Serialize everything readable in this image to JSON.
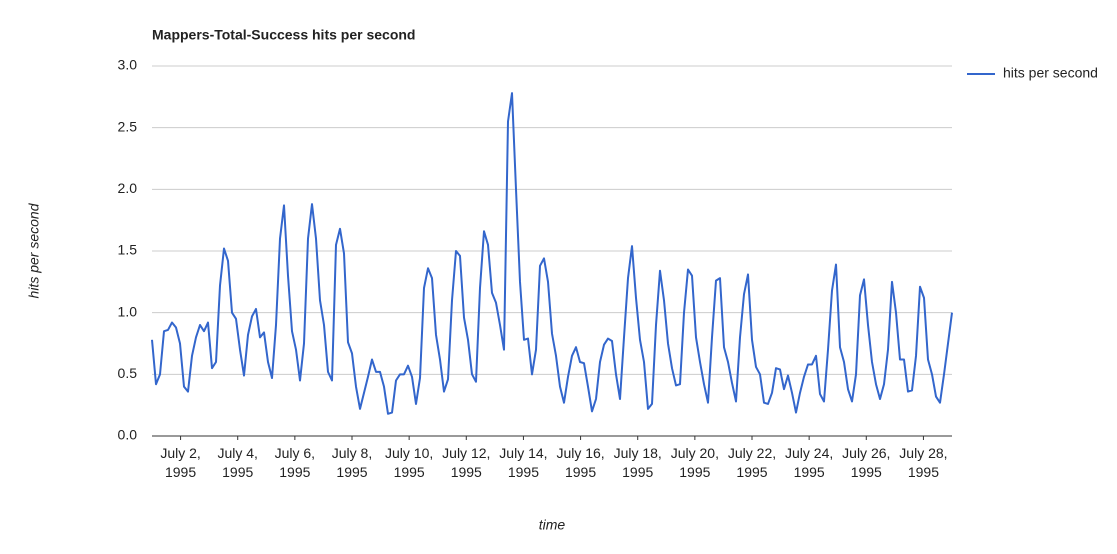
{
  "chart_data": {
    "type": "line",
    "title": "Mappers-Total-Success hits per second",
    "x_label": "time",
    "y_label": "hits per second",
    "xlim": [
      "1995-07-01",
      "1995-07-29"
    ],
    "xticks": [
      {
        "value": "1995-07-02",
        "label": "July 2, 1995"
      },
      {
        "value": "1995-07-04",
        "label": "July 4, 1995"
      },
      {
        "value": "1995-07-06",
        "label": "July 6, 1995"
      },
      {
        "value": "1995-07-08",
        "label": "July 8, 1995"
      },
      {
        "value": "1995-07-10",
        "label": "July 10, 1995"
      },
      {
        "value": "1995-07-12",
        "label": "July 12, 1995"
      },
      {
        "value": "1995-07-14",
        "label": "July 14, 1995"
      },
      {
        "value": "1995-07-16",
        "label": "July 16, 1995"
      },
      {
        "value": "1995-07-18",
        "label": "July 18, 1995"
      },
      {
        "value": "1995-07-20",
        "label": "July 20, 1995"
      },
      {
        "value": "1995-07-22",
        "label": "July 22, 1995"
      },
      {
        "value": "1995-07-24",
        "label": "July 24, 1995"
      },
      {
        "value": "1995-07-26",
        "label": "July 26, 1995"
      },
      {
        "value": "1995-07-28",
        "label": "July 28, 1995"
      }
    ],
    "ylim": [
      0,
      3
    ],
    "yticks": [
      {
        "value": 0,
        "label": "0.0"
      },
      {
        "value": 0.5,
        "label": "0.5"
      },
      {
        "value": 1,
        "label": "1.0"
      },
      {
        "value": 1.5,
        "label": "1.5"
      },
      {
        "value": 2,
        "label": "2.0"
      },
      {
        "value": 2.5,
        "label": "2.5"
      },
      {
        "value": 3,
        "label": "3.0"
      }
    ],
    "grid": true,
    "legend": "right",
    "series": [
      {
        "name": "hits per second",
        "color": "#3366cc",
        "values": [
          0.78,
          0.42,
          0.5,
          0.85,
          0.86,
          0.92,
          0.88,
          0.75,
          0.4,
          0.36,
          0.65,
          0.8,
          0.9,
          0.85,
          0.92,
          0.55,
          0.6,
          1.22,
          1.52,
          1.42,
          1.0,
          0.95,
          0.7,
          0.49,
          0.82,
          0.97,
          1.03,
          0.8,
          0.84,
          0.6,
          0.47,
          0.9,
          1.6,
          1.87,
          1.3,
          0.85,
          0.7,
          0.45,
          0.75,
          1.6,
          1.88,
          1.6,
          1.1,
          0.9,
          0.52,
          0.45,
          1.55,
          1.68,
          1.48,
          0.76,
          0.67,
          0.4,
          0.22,
          0.35,
          0.48,
          0.62,
          0.52,
          0.52,
          0.4,
          0.18,
          0.19,
          0.45,
          0.5,
          0.5,
          0.57,
          0.48,
          0.26,
          0.47,
          1.2,
          1.36,
          1.28,
          0.82,
          0.62,
          0.36,
          0.46,
          1.1,
          1.5,
          1.46,
          0.96,
          0.78,
          0.5,
          0.44,
          1.2,
          1.66,
          1.55,
          1.16,
          1.08,
          0.9,
          0.7,
          2.55,
          2.78,
          2.0,
          1.25,
          0.78,
          0.79,
          0.5,
          0.7,
          1.38,
          1.44,
          1.25,
          0.83,
          0.65,
          0.4,
          0.27,
          0.48,
          0.65,
          0.72,
          0.6,
          0.59,
          0.4,
          0.2,
          0.3,
          0.6,
          0.74,
          0.79,
          0.77,
          0.5,
          0.3,
          0.8,
          1.28,
          1.54,
          1.12,
          0.78,
          0.6,
          0.22,
          0.26,
          0.9,
          1.34,
          1.1,
          0.75,
          0.55,
          0.41,
          0.42,
          1.0,
          1.35,
          1.3,
          0.8,
          0.6,
          0.42,
          0.27,
          0.8,
          1.26,
          1.28,
          0.72,
          0.6,
          0.43,
          0.28,
          0.8,
          1.15,
          1.31,
          0.78,
          0.56,
          0.5,
          0.27,
          0.26,
          0.35,
          0.55,
          0.54,
          0.38,
          0.49,
          0.35,
          0.19,
          0.35,
          0.48,
          0.58,
          0.58,
          0.65,
          0.34,
          0.28,
          0.7,
          1.18,
          1.39,
          0.72,
          0.6,
          0.38,
          0.28,
          0.5,
          1.14,
          1.27,
          0.9,
          0.6,
          0.42,
          0.3,
          0.42,
          0.7,
          1.25,
          1.0,
          0.62,
          0.62,
          0.36,
          0.37,
          0.65,
          1.21,
          1.12,
          0.62,
          0.5,
          0.32,
          0.27,
          0.5,
          0.75,
          1.0
        ]
      }
    ]
  }
}
